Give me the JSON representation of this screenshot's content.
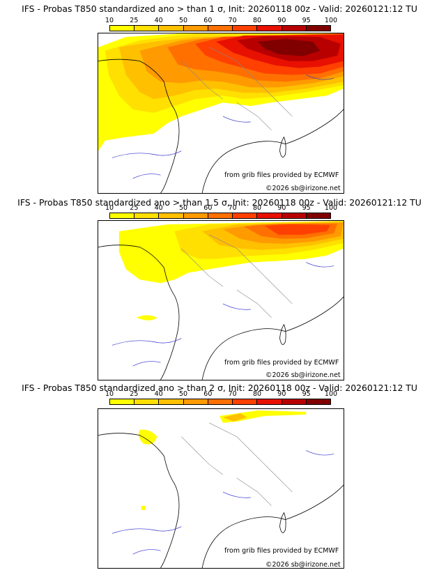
{
  "panels": [
    {
      "title": "IFS - Probas T850  standardized ano > than 1 σ, Init: 20260118 00z - Valid: 20260121:12 TU"
    },
    {
      "title": "IFS - Probas T850  standardized ano > than 1.5 σ, Init: 20260118 00z - Valid: 20260121:12 TU"
    },
    {
      "title": "IFS - Probas T850  standardized ano > than 2 σ, Init: 20260118 00z - Valid: 20260121:12 TU"
    }
  ],
  "legend": {
    "ticks": [
      "10",
      "25",
      "40",
      "50",
      "60",
      "70",
      "80",
      "90",
      "95",
      "100"
    ],
    "colors": [
      "#ffff00",
      "#ffe000",
      "#ffc000",
      "#ff9a00",
      "#ff7000",
      "#ff4000",
      "#e81000",
      "#b80000",
      "#800000"
    ]
  },
  "credits": {
    "source": "from grib files provided by ECMWF",
    "copyright": "©2026 sb@irizone.net"
  }
}
